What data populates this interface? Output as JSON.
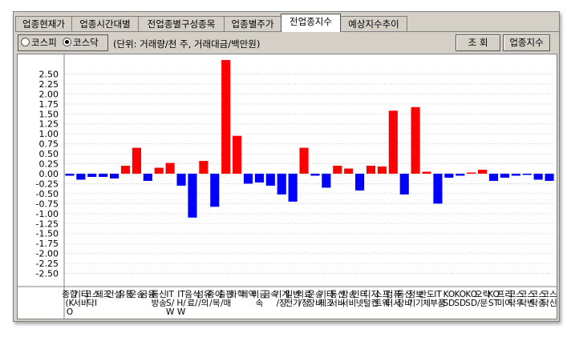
{
  "tabs": [
    {
      "label": "업종현재가",
      "active": false
    },
    {
      "label": "업종시간대별",
      "active": false
    },
    {
      "label": "전업종별구성종목",
      "active": false
    },
    {
      "label": "업종별주가",
      "active": false
    },
    {
      "label": "전업종지수",
      "active": true
    },
    {
      "label": "예상지수추이",
      "active": false
    }
  ],
  "market_radio": {
    "options": [
      {
        "label": "코스피",
        "checked": false
      },
      {
        "label": "코스닥",
        "checked": true
      }
    ]
  },
  "unit_label": "(단위: 거래량/천 주, 거래대금/백만원)",
  "buttons": {
    "query": "조 회",
    "sector_index": "업종지수"
  },
  "colors": {
    "up": "#ff0000",
    "down": "#0000ff",
    "grid": "#d0d0d0",
    "axis": "#808080",
    "background": "#ffffff"
  },
  "chart_data": {
    "type": "bar",
    "ylim": [
      -2.75,
      2.75
    ],
    "yticks": [
      "2.50",
      "2.25",
      "2.00",
      "1.75",
      "1.50",
      "1.25",
      "1.00",
      "0.75",
      "0.50",
      "0.25",
      "0.00",
      "-0.25",
      "-0.50",
      "-0.75",
      "-1.00",
      "-1.25",
      "-1.50",
      "-1.75",
      "-2.00",
      "-2.25",
      "-2.50"
    ],
    "grid": true,
    "categories": [
      "종합(KO",
      "기타서비",
      "코스닥I",
      "제조",
      "건설",
      "유통",
      "운송",
      "금융",
      "통신방송",
      "IT S/W",
      "IT H/W",
      "음식료/",
      "섬유/의",
      "종이/목",
      "출판/매",
      "화학",
      "제약",
      "비금속",
      "금속",
      "기계/장",
      "일반전기",
      "의료/정",
      "운송장비",
      "기타제조",
      "통신서비",
      "방송서비",
      "인터넷",
      "디지털컨",
      "소프트웨",
      "컴퓨터서",
      "통신장비",
      "정보기기",
      "반도체",
      "IT부품",
      "KOSD",
      "KOSD",
      "KOSD",
      "오락/문",
      "KOST",
      "프리미어",
      "코스닥우",
      "코스닥벤",
      "코스닥중",
      "코스닥신"
    ],
    "values": [
      -0.05,
      -0.15,
      -0.08,
      -0.08,
      -0.12,
      0.2,
      0.65,
      -0.18,
      0.15,
      0.27,
      -0.3,
      -1.1,
      0.32,
      -0.83,
      2.85,
      0.95,
      -0.25,
      -0.22,
      -0.3,
      -0.52,
      -0.7,
      0.65,
      -0.05,
      -0.35,
      0.2,
      0.13,
      -0.42,
      0.2,
      0.18,
      1.58,
      -0.52,
      1.67,
      0.05,
      -0.75,
      -0.1,
      -0.05,
      0.03,
      0.1,
      -0.18,
      -0.1,
      -0.05,
      -0.03,
      -0.15,
      -0.18
    ]
  }
}
